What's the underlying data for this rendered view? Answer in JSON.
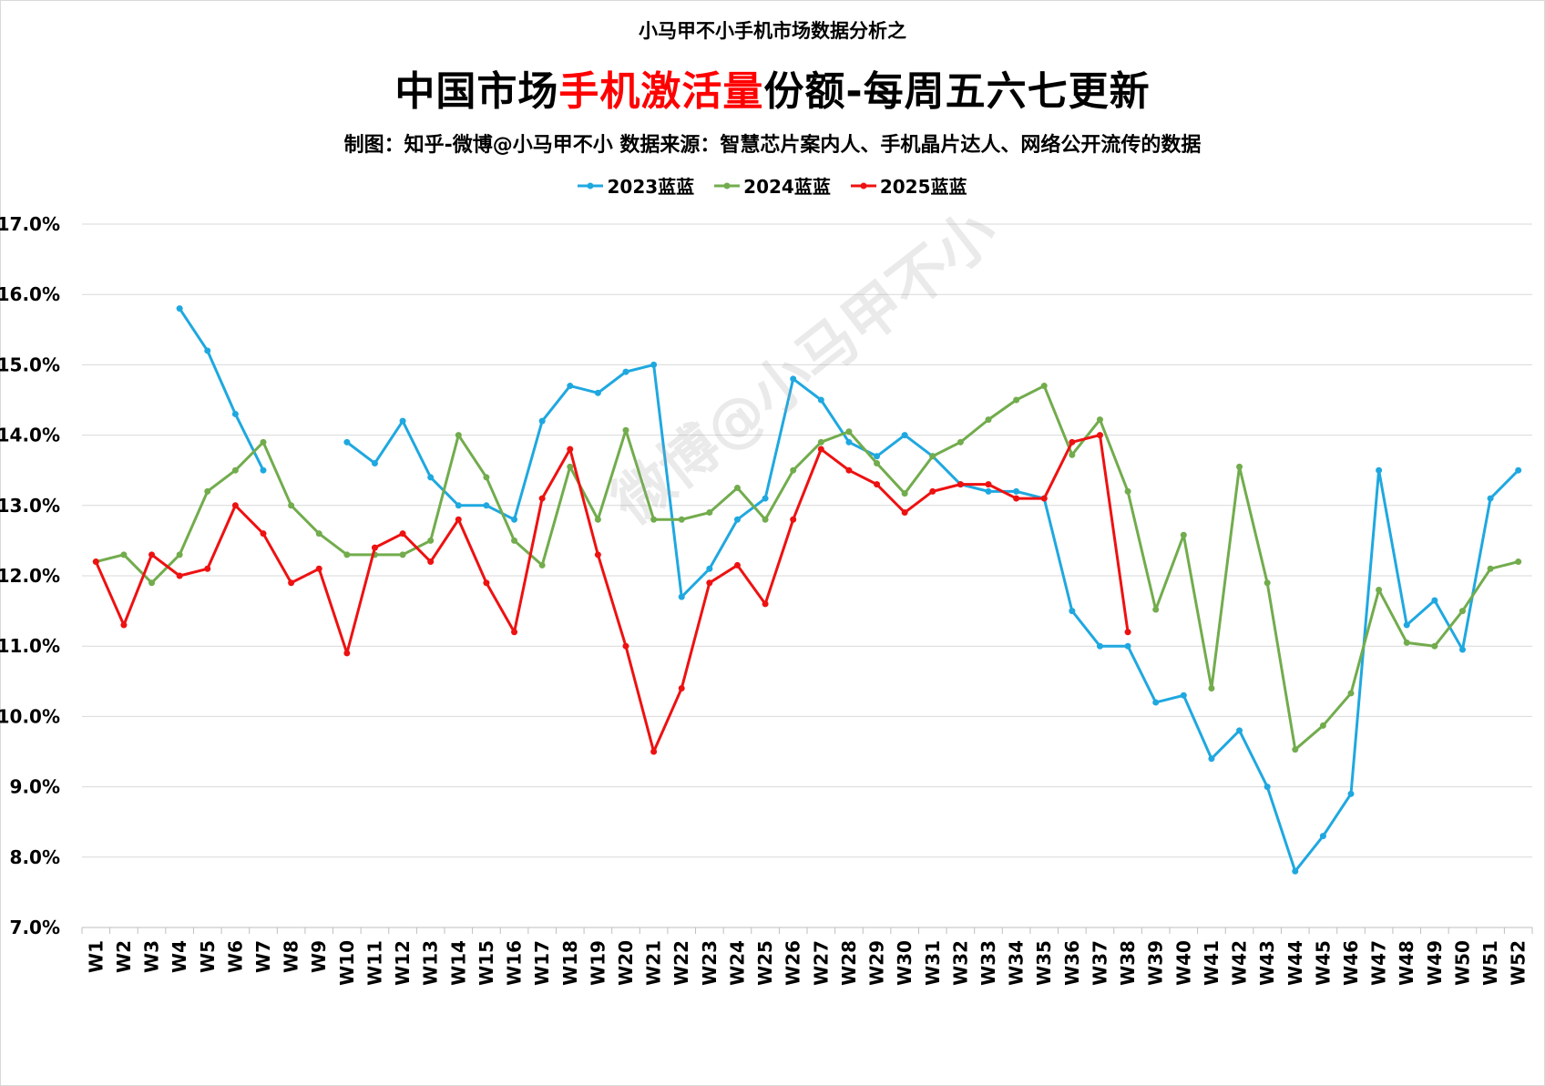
{
  "header": {
    "pre_title": "小马甲不小手机市场数据分析之",
    "title_part1": "中国市场",
    "title_highlight": "手机激活量",
    "title_part2": "份额-每周五六七更新",
    "subtitle": "制图：知乎-微博@小马甲不小  数据来源：智慧芯片案内人、手机晶片达人、网络公开流传的数据"
  },
  "watermark": "微博@小马甲不小",
  "chart_data": {
    "type": "line",
    "title": "中国市场手机激活量份额-每周五六七更新",
    "categories": [
      "W1",
      "W2",
      "W3",
      "W4",
      "W5",
      "W6",
      "W7",
      "W8",
      "W9",
      "W10",
      "W11",
      "W12",
      "W13",
      "W14",
      "W15",
      "W16",
      "W17",
      "W18",
      "W19",
      "W20",
      "W21",
      "W22",
      "W23",
      "W24",
      "W25",
      "W26",
      "W27",
      "W28",
      "W29",
      "W30",
      "W31",
      "W32",
      "W33",
      "W34",
      "W35",
      "W36",
      "W37",
      "W38",
      "W39",
      "W40",
      "W41",
      "W42",
      "W43",
      "W44",
      "W45",
      "W46",
      "W47",
      "W48",
      "W49",
      "W50",
      "W51",
      "W52"
    ],
    "y_ticks": [
      "7.0%",
      "8.0%",
      "9.0%",
      "10.0%",
      "11.0%",
      "12.0%",
      "13.0%",
      "14.0%",
      "15.0%",
      "16.0%",
      "17.0%"
    ],
    "ylim": [
      7,
      17
    ],
    "grid": true,
    "legend_position": "top",
    "series": [
      {
        "name": "2023蓝蓝",
        "color": "#1fa8e0",
        "values": [
          null,
          null,
          null,
          15.8,
          15.2,
          14.3,
          13.5,
          null,
          null,
          13.9,
          13.6,
          14.2,
          13.4,
          13.0,
          13.0,
          12.8,
          14.2,
          14.7,
          14.6,
          14.9,
          15.0,
          11.7,
          12.1,
          12.8,
          13.1,
          14.8,
          14.5,
          13.9,
          13.7,
          14.0,
          13.7,
          13.3,
          13.2,
          13.2,
          13.1,
          11.5,
          11.0,
          11.0,
          10.2,
          10.3,
          9.4,
          9.8,
          9.0,
          7.8,
          8.3,
          8.9,
          13.5,
          11.3,
          11.65,
          10.95,
          13.1,
          13.5
        ]
      },
      {
        "name": "2024蓝蓝",
        "color": "#72ac4d",
        "values": [
          12.2,
          12.3,
          11.9,
          12.3,
          13.2,
          13.5,
          13.9,
          13.0,
          12.6,
          12.3,
          12.3,
          12.3,
          12.5,
          14.0,
          13.4,
          12.5,
          12.15,
          13.55,
          12.8,
          14.07,
          12.8,
          12.8,
          12.9,
          13.25,
          12.8,
          13.5,
          13.9,
          14.05,
          13.6,
          13.17,
          13.7,
          13.9,
          14.22,
          14.5,
          14.7,
          13.72,
          14.22,
          13.2,
          11.52,
          12.58,
          10.4,
          13.55,
          11.9,
          9.53,
          9.87,
          10.33,
          11.8,
          11.05,
          11.0,
          11.5,
          12.1,
          12.2
        ]
      },
      {
        "name": "2025蓝蓝",
        "color": "#ee1111",
        "values": [
          12.2,
          11.3,
          12.3,
          12.0,
          12.1,
          13.0,
          12.6,
          11.9,
          12.1,
          10.9,
          12.4,
          12.6,
          12.2,
          12.8,
          11.9,
          11.2,
          13.1,
          13.8,
          12.3,
          11.0,
          9.5,
          10.4,
          11.9,
          12.15,
          11.6,
          12.8,
          13.8,
          13.5,
          13.3,
          12.9,
          13.2,
          13.3,
          13.3,
          13.1,
          13.1,
          13.9,
          14.0,
          11.2,
          null,
          null,
          null,
          null,
          null,
          null,
          null,
          null,
          null,
          null,
          null,
          null,
          null,
          null
        ]
      }
    ]
  }
}
